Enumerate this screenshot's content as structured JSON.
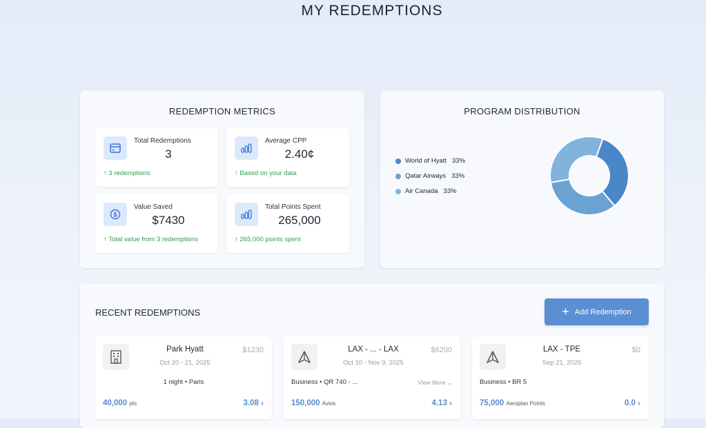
{
  "page_title": "MY REDEMPTIONS",
  "metrics": {
    "title": "REDEMPTION METRICS",
    "cards": [
      {
        "label": "Total Redemptions",
        "value": "3",
        "foot": "3 redemptions",
        "icon": "credit-card-icon"
      },
      {
        "label": "Average CPP",
        "value": "2.40¢",
        "foot": "Based on your data",
        "icon": "bar-chart-icon"
      },
      {
        "label": "Value Saved",
        "value": "$7430",
        "foot": "Total value from 3 redemptions",
        "icon": "dollar-icon"
      },
      {
        "label": "Total Points Spent",
        "value": "265,000",
        "foot": "265,000 points spent",
        "icon": "bar-chart-icon"
      }
    ]
  },
  "distribution": {
    "title": "PROGRAM DISTRIBUTION",
    "chart_data": {
      "type": "pie",
      "donut": true,
      "categories": [
        "World of Hyatt",
        "Qatar Airways",
        "Air Canada"
      ],
      "values": [
        33,
        33,
        33
      ],
      "labels": [
        "33%",
        "33%",
        "33%"
      ],
      "colors": [
        "#4a86c8",
        "#6aa2d3",
        "#80b4dc"
      ]
    }
  },
  "recent": {
    "title": "RECENT REDEMPTIONS",
    "add_label": "Add Redemption",
    "view_more": "View More",
    "items": [
      {
        "title": "Park Hyatt",
        "date": "Oct 20 - 21, 2025",
        "price": "$1230",
        "detail": "1 night • Paris",
        "points": "40,000",
        "unit": "pts",
        "cpp": "3.08",
        "icon": "building-icon"
      },
      {
        "title": "LAX - ... - LAX",
        "date": "Oct 10 - Nov 9, 2025",
        "price": "$6200",
        "detail": "Business • QR 740 - ...",
        "points": "150,000",
        "unit": "Avios",
        "cpp": "4.13",
        "icon": "plane-icon"
      },
      {
        "title": "LAX - TPE",
        "date": "Sep 21, 2025",
        "price": "$0",
        "detail": "Business • BR 5",
        "points": "75,000",
        "unit": "Aeroplan Points",
        "cpp": "0.0",
        "icon": "plane-icon"
      }
    ],
    "cpp_unit": "¢"
  }
}
